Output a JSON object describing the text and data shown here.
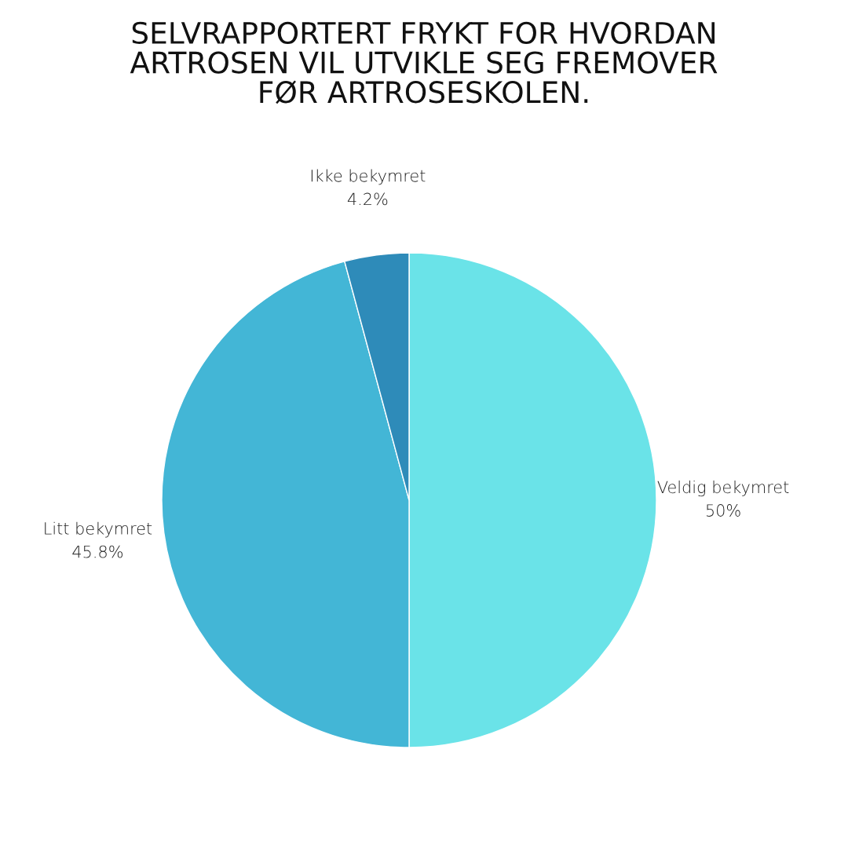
{
  "chart_data": {
    "type": "pie",
    "title": "SELVRAPPORTERT FRYKT FOR HVORDAN\nARTROSEN VIL UTVIKLE SEG FREMOVER\nFØR ARTROSESKOLEN.",
    "categories": [
      "Veldig bekymret",
      "Litt bekymret",
      "Ikke bekymret"
    ],
    "values": [
      50,
      45.8,
      4.2
    ],
    "value_labels": [
      "50%",
      "45.8%",
      "4.2%"
    ],
    "colors": [
      "#6ae3e8",
      "#43b6d6",
      "#2e8bb9"
    ],
    "legend": false
  }
}
